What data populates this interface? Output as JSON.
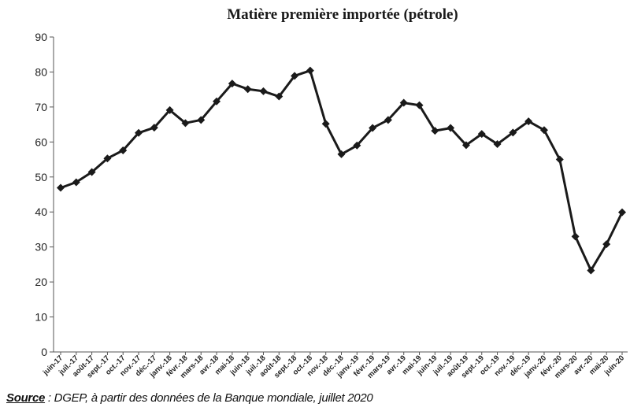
{
  "chart_data": {
    "type": "line",
    "title": "Matière première importée (pétrole)",
    "xlabel": "",
    "ylabel": "",
    "ylim": [
      0,
      90
    ],
    "yticks": [
      0,
      10,
      20,
      30,
      40,
      50,
      60,
      70,
      80,
      90
    ],
    "grid": false,
    "legend": "none",
    "line_color": "#1a1a1a",
    "marker": "diamond",
    "categories": [
      "juin-17",
      "juil.-17",
      "août-17",
      "sept.-17",
      "oct.-17",
      "nov.-17",
      "déc.-17",
      "janv.-18",
      "févr.-18",
      "mars-18",
      "avr.-18",
      "mai-18",
      "juin-18",
      "juil.-18",
      "août-18",
      "sept.-18",
      "oct.-18",
      "nov.-18",
      "déc.-18",
      "janv.-19",
      "févr.-19",
      "mars-19",
      "avr.-19",
      "mai-19",
      "juin-19",
      "juil.-19",
      "août-19",
      "sept.-19",
      "oct.-19",
      "nov.-19",
      "déc.-19",
      "janv.-20",
      "févr.-20",
      "mars-20",
      "avr.-20",
      "mai-20",
      "juin-20"
    ],
    "values": [
      46.9,
      48.5,
      51.4,
      55.3,
      57.6,
      62.6,
      64.1,
      69.1,
      65.4,
      66.3,
      71.6,
      76.7,
      75.1,
      74.5,
      73.0,
      78.9,
      80.4,
      65.2,
      56.5,
      59.0,
      64.0,
      66.3,
      71.2,
      70.5,
      63.2,
      64.0,
      59.1,
      62.3,
      59.4,
      62.7,
      65.9,
      63.4,
      55.0,
      33.0,
      23.3,
      30.8,
      39.9
    ]
  },
  "source": {
    "label": "Source",
    "text": " : DGEP, à partir des données de la Banque mondiale, juillet 2020"
  }
}
